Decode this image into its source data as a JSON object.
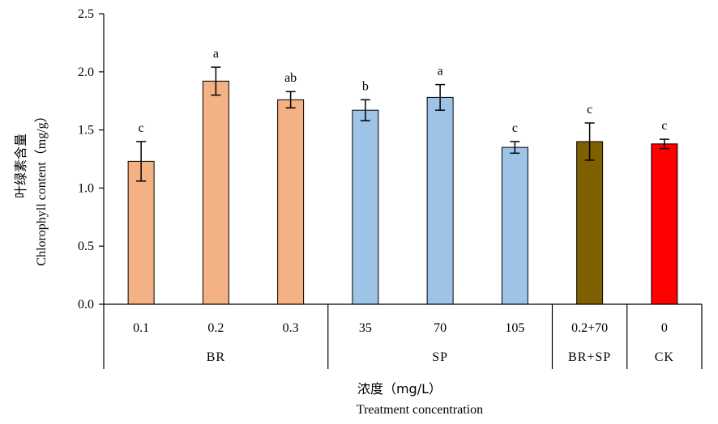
{
  "chart_data": {
    "type": "bar",
    "categories": [
      "0.1",
      "0.2",
      "0.3",
      "35",
      "70",
      "105",
      "0.2+70",
      "0"
    ],
    "groups": [
      {
        "label": "BR",
        "categories": [
          "0.1",
          "0.2",
          "0.3"
        ]
      },
      {
        "label": "SP",
        "categories": [
          "35",
          "70",
          "105"
        ]
      },
      {
        "label": "BR+SP",
        "categories": [
          "0.2+70"
        ]
      },
      {
        "label": "CK",
        "categories": [
          "0"
        ]
      }
    ],
    "values": [
      1.23,
      1.92,
      1.76,
      1.67,
      1.78,
      1.35,
      1.4,
      1.38
    ],
    "errors": [
      0.17,
      0.12,
      0.07,
      0.09,
      0.11,
      0.05,
      0.16,
      0.04
    ],
    "significance_letters": [
      "c",
      "a",
      "ab",
      "b",
      "a",
      "c",
      "c",
      "c"
    ],
    "bar_colors": [
      "#F4B183",
      "#F4B183",
      "#F4B183",
      "#9DC3E6",
      "#9DC3E6",
      "#9DC3E6",
      "#7F6000",
      "#FF0000"
    ],
    "ylabel_cn": "叶绿素含量",
    "ylabel_en": "Chlorophyll content（mg/g）",
    "xlabel_cn": "浓度（mg/L）",
    "xlabel_en": "Treatment concentration",
    "ylim": [
      0,
      2.5
    ],
    "yticks": [
      "0.0",
      "0.5",
      "1.0",
      "1.5",
      "2.0",
      "2.5"
    ],
    "grid": false,
    "legend": "none"
  }
}
